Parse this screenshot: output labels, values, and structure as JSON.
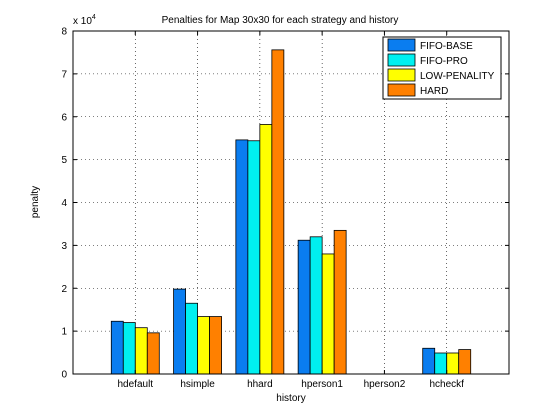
{
  "chart_data": {
    "type": "bar",
    "title": "Penalties for Map 30x30 for each strategy and history",
    "xlabel": "history",
    "ylabel": "penalty",
    "exponent_label": "x 10",
    "exponent_power": "4",
    "categories": [
      "hdefault",
      "hsimple",
      "hhard",
      "hperson1",
      "hperson2",
      "hcheckf"
    ],
    "yticks": [
      "0",
      "1",
      "2",
      "3",
      "4",
      "5",
      "6",
      "7",
      "8"
    ],
    "ylim": [
      0,
      80000
    ],
    "grid": true,
    "legend_position": "top-right",
    "series": [
      {
        "name": "FIFO-BASE",
        "color": "#0a7df0",
        "values": [
          12300,
          19800,
          54600,
          31200,
          0,
          6000
        ]
      },
      {
        "name": "FIFO-PRO",
        "color": "#00f0f0",
        "values": [
          12000,
          16500,
          54400,
          32000,
          0,
          4900
        ]
      },
      {
        "name": "LOW-PENALITY",
        "color": "#ffff00",
        "values": [
          10800,
          13400,
          58200,
          28000,
          0,
          4900
        ]
      },
      {
        "name": "HARD",
        "color": "#ff8000",
        "values": [
          9600,
          13400,
          75600,
          33500,
          0,
          5700
        ]
      }
    ]
  }
}
